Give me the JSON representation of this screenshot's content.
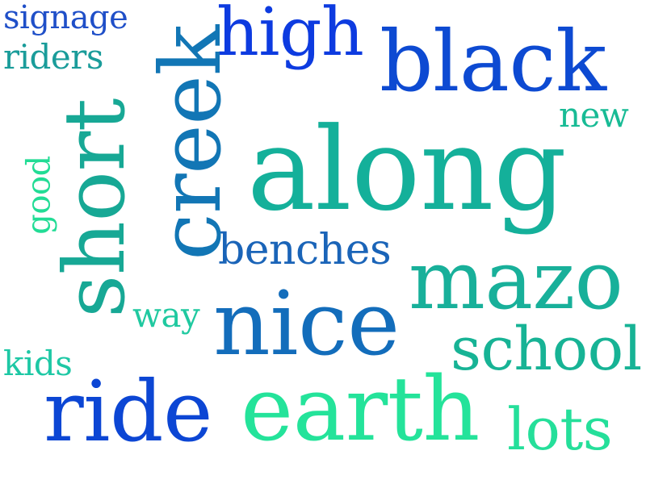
{
  "words": [
    {
      "text": "signage",
      "color": "#1f4fc8"
    },
    {
      "text": "riders",
      "color": "#1a9c9a"
    },
    {
      "text": "creek",
      "color": "#1276b5"
    },
    {
      "text": "high",
      "color": "#0d3be0"
    },
    {
      "text": "black",
      "color": "#0d4ad2"
    },
    {
      "text": "new",
      "color": "#18bb95"
    },
    {
      "text": "short",
      "color": "#17a895"
    },
    {
      "text": "good",
      "color": "#22dc95"
    },
    {
      "text": "along",
      "color": "#14b09a"
    },
    {
      "text": "benches",
      "color": "#1a64b8"
    },
    {
      "text": "mazo",
      "color": "#18b09a"
    },
    {
      "text": "way",
      "color": "#20c9a0"
    },
    {
      "text": "nice",
      "color": "#136dbb"
    },
    {
      "text": "school",
      "color": "#17b395"
    },
    {
      "text": "kids",
      "color": "#1ec8a5"
    },
    {
      "text": "ride",
      "color": "#0c46d4"
    },
    {
      "text": "earth",
      "color": "#24e39a"
    },
    {
      "text": "lots",
      "color": "#25df9a"
    }
  ]
}
